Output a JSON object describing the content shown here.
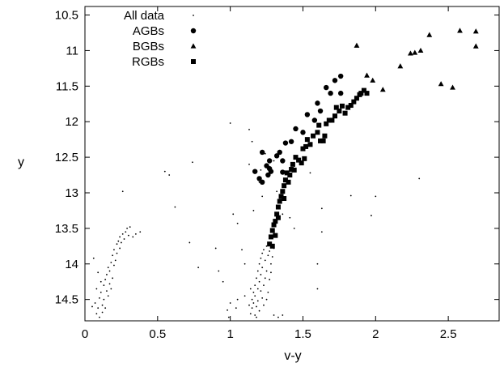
{
  "chart_data": {
    "type": "scatter",
    "xlabel": "v-y",
    "ylabel": "y",
    "xlim": [
      0,
      2.85
    ],
    "ylim": [
      10.38,
      14.8
    ],
    "y_inverted": true,
    "grid": false,
    "legend_position": "top-left",
    "x_ticks": [
      0,
      0.5,
      1,
      1.5,
      2,
      2.5
    ],
    "x_tick_labels": [
      "0",
      "0.5",
      "1",
      "1.5",
      "2",
      "2.5"
    ],
    "y_ticks": [
      10.5,
      11,
      11.5,
      12,
      12.5,
      13,
      13.5,
      14,
      14.5
    ],
    "y_tick_labels": [
      "10.5",
      "11",
      "11.5",
      "12",
      "12.5",
      "13",
      "13.5",
      "14",
      "14.5"
    ],
    "series": [
      {
        "name": "All data",
        "marker": "dot",
        "points": [
          [
            0.07,
            14.55
          ],
          [
            0.08,
            14.7
          ],
          [
            0.09,
            14.62
          ],
          [
            0.1,
            14.48
          ],
          [
            0.1,
            14.75
          ],
          [
            0.11,
            14.4
          ],
          [
            0.12,
            14.58
          ],
          [
            0.12,
            14.68
          ],
          [
            0.13,
            14.3
          ],
          [
            0.13,
            14.5
          ],
          [
            0.14,
            14.22
          ],
          [
            0.14,
            14.62
          ],
          [
            0.15,
            14.15
          ],
          [
            0.15,
            14.38
          ],
          [
            0.16,
            14.45
          ],
          [
            0.16,
            14.05
          ],
          [
            0.17,
            14.28
          ],
          [
            0.17,
            14.1
          ],
          [
            0.18,
            14.35
          ],
          [
            0.18,
            13.98
          ],
          [
            0.19,
            14.2
          ],
          [
            0.19,
            13.88
          ],
          [
            0.2,
            14.02
          ],
          [
            0.2,
            13.8
          ],
          [
            0.21,
            13.95
          ],
          [
            0.22,
            13.72
          ],
          [
            0.22,
            13.85
          ],
          [
            0.23,
            13.68
          ],
          [
            0.24,
            13.78
          ],
          [
            0.24,
            13.62
          ],
          [
            0.25,
            13.7
          ],
          [
            0.26,
            13.58
          ],
          [
            0.27,
            13.65
          ],
          [
            0.28,
            13.55
          ],
          [
            0.29,
            13.5
          ],
          [
            0.3,
            13.6
          ],
          [
            0.31,
            13.48
          ],
          [
            0.33,
            13.62
          ],
          [
            0.35,
            13.58
          ],
          [
            0.38,
            13.55
          ],
          [
            0.06,
            13.92
          ],
          [
            0.09,
            14.12
          ],
          [
            0.11,
            14.25
          ],
          [
            0.05,
            14.6
          ],
          [
            0.08,
            14.35
          ],
          [
            0.26,
            12.98
          ],
          [
            0.55,
            12.7
          ],
          [
            0.58,
            12.75
          ],
          [
            0.62,
            13.2
          ],
          [
            0.74,
            12.57
          ],
          [
            0.72,
            13.7
          ],
          [
            0.78,
            14.05
          ],
          [
            0.9,
            13.78
          ],
          [
            0.92,
            14.1
          ],
          [
            0.95,
            14.25
          ],
          [
            0.98,
            14.65
          ],
          [
            0.99,
            14.75
          ],
          [
            1.0,
            14.55
          ],
          [
            1.04,
            14.62
          ],
          [
            1.05,
            14.5
          ],
          [
            1.0,
            12.02
          ],
          [
            1.02,
            13.3
          ],
          [
            1.05,
            13.43
          ],
          [
            1.08,
            13.8
          ],
          [
            1.1,
            14.0
          ],
          [
            1.1,
            14.45
          ],
          [
            1.13,
            12.11
          ],
          [
            1.13,
            12.6
          ],
          [
            1.15,
            12.28
          ],
          [
            1.16,
            13.25
          ],
          [
            1.18,
            14.75
          ],
          [
            1.2,
            12.85
          ],
          [
            1.21,
            12.68
          ],
          [
            1.22,
            13.05
          ],
          [
            1.24,
            12.45
          ],
          [
            1.14,
            14.7
          ],
          [
            1.15,
            14.62
          ],
          [
            1.15,
            14.5
          ],
          [
            1.16,
            14.55
          ],
          [
            1.16,
            14.4
          ],
          [
            1.17,
            14.3
          ],
          [
            1.17,
            14.45
          ],
          [
            1.18,
            14.2
          ],
          [
            1.18,
            14.6
          ],
          [
            1.19,
            14.1
          ],
          [
            1.19,
            14.35
          ],
          [
            1.2,
            14.0
          ],
          [
            1.2,
            14.25
          ],
          [
            1.21,
            13.92
          ],
          [
            1.21,
            14.15
          ],
          [
            1.22,
            13.85
          ],
          [
            1.22,
            14.05
          ],
          [
            1.23,
            13.8
          ],
          [
            1.23,
            14.3
          ],
          [
            1.24,
            13.95
          ],
          [
            1.24,
            14.2
          ],
          [
            1.25,
            13.75
          ],
          [
            1.25,
            14.1
          ],
          [
            1.26,
            13.88
          ],
          [
            1.26,
            14.4
          ],
          [
            1.27,
            13.82
          ],
          [
            1.28,
            14.0
          ],
          [
            1.29,
            13.9
          ],
          [
            1.3,
            13.78
          ],
          [
            1.17,
            14.72
          ],
          [
            1.19,
            14.52
          ],
          [
            1.2,
            14.66
          ],
          [
            1.13,
            14.58
          ],
          [
            1.22,
            14.48
          ],
          [
            1.23,
            14.58
          ],
          [
            1.14,
            14.35
          ],
          [
            1.21,
            14.38
          ],
          [
            1.25,
            14.5
          ],
          [
            1.27,
            14.22
          ],
          [
            1.28,
            14.12
          ],
          [
            1.3,
            14.72
          ],
          [
            1.33,
            14.75
          ],
          [
            1.36,
            14.72
          ],
          [
            1.3,
            12.55
          ],
          [
            1.32,
            12.98
          ],
          [
            1.36,
            13.3
          ],
          [
            1.41,
            13.35
          ],
          [
            1.44,
            13.5
          ],
          [
            1.55,
            12.72
          ],
          [
            1.6,
            14.0
          ],
          [
            1.6,
            14.35
          ],
          [
            1.63,
            13.55
          ],
          [
            1.63,
            13.22
          ],
          [
            1.83,
            13.04
          ],
          [
            1.97,
            13.32
          ],
          [
            2.0,
            13.05
          ],
          [
            2.3,
            12.8
          ]
        ]
      },
      {
        "name": "AGBs",
        "marker": "circle",
        "points": [
          [
            1.17,
            12.7
          ],
          [
            1.2,
            12.8
          ],
          [
            1.22,
            12.43
          ],
          [
            1.22,
            12.85
          ],
          [
            1.25,
            12.62
          ],
          [
            1.26,
            12.75
          ],
          [
            1.27,
            12.66
          ],
          [
            1.28,
            12.7
          ],
          [
            1.27,
            12.55
          ],
          [
            1.32,
            12.48
          ],
          [
            1.34,
            12.43
          ],
          [
            1.36,
            12.55
          ],
          [
            1.36,
            12.71
          ],
          [
            1.38,
            12.3
          ],
          [
            1.42,
            12.28
          ],
          [
            1.45,
            12.1
          ],
          [
            1.5,
            12.15
          ],
          [
            1.53,
            11.9
          ],
          [
            1.58,
            11.98
          ],
          [
            1.6,
            11.74
          ],
          [
            1.62,
            11.85
          ],
          [
            1.66,
            11.52
          ],
          [
            1.69,
            11.6
          ],
          [
            1.72,
            11.42
          ],
          [
            1.76,
            11.36
          ],
          [
            1.76,
            11.6
          ]
        ]
      },
      {
        "name": "BGBs",
        "marker": "triangle",
        "points": [
          [
            1.87,
            10.93
          ],
          [
            1.94,
            11.35
          ],
          [
            1.98,
            11.42
          ],
          [
            2.05,
            11.55
          ],
          [
            2.17,
            11.22
          ],
          [
            2.24,
            11.04
          ],
          [
            2.27,
            11.03
          ],
          [
            2.31,
            11.0
          ],
          [
            2.37,
            10.78
          ],
          [
            2.45,
            11.47
          ],
          [
            2.53,
            11.52
          ],
          [
            2.58,
            10.72
          ],
          [
            2.69,
            10.73
          ],
          [
            2.69,
            10.94
          ]
        ]
      },
      {
        "name": "RGBs",
        "marker": "square",
        "points": [
          [
            1.27,
            13.72
          ],
          [
            1.28,
            13.62
          ],
          [
            1.29,
            13.75
          ],
          [
            1.29,
            13.53
          ],
          [
            1.3,
            13.45
          ],
          [
            1.31,
            13.4
          ],
          [
            1.31,
            13.6
          ],
          [
            1.32,
            13.3
          ],
          [
            1.33,
            13.2
          ],
          [
            1.33,
            13.35
          ],
          [
            1.34,
            13.12
          ],
          [
            1.35,
            13.05
          ],
          [
            1.36,
            12.98
          ],
          [
            1.37,
            12.9
          ],
          [
            1.37,
            13.08
          ],
          [
            1.38,
            12.82
          ],
          [
            1.39,
            12.72
          ],
          [
            1.4,
            12.85
          ],
          [
            1.41,
            12.75
          ],
          [
            1.42,
            12.67
          ],
          [
            1.43,
            12.6
          ],
          [
            1.44,
            12.68
          ],
          [
            1.45,
            12.5
          ],
          [
            1.47,
            12.54
          ],
          [
            1.49,
            12.58
          ],
          [
            1.5,
            12.38
          ],
          [
            1.51,
            12.52
          ],
          [
            1.52,
            12.35
          ],
          [
            1.53,
            12.25
          ],
          [
            1.55,
            12.32
          ],
          [
            1.57,
            12.2
          ],
          [
            1.6,
            12.15
          ],
          [
            1.61,
            12.05
          ],
          [
            1.62,
            12.27
          ],
          [
            1.64,
            12.27
          ],
          [
            1.65,
            12.2
          ],
          [
            1.66,
            12.03
          ],
          [
            1.68,
            11.98
          ],
          [
            1.7,
            11.98
          ],
          [
            1.72,
            11.92
          ],
          [
            1.73,
            11.8
          ],
          [
            1.75,
            11.85
          ],
          [
            1.77,
            11.78
          ],
          [
            1.79,
            11.88
          ],
          [
            1.81,
            11.8
          ],
          [
            1.83,
            11.77
          ],
          [
            1.85,
            11.72
          ],
          [
            1.87,
            11.67
          ],
          [
            1.89,
            11.62
          ],
          [
            1.9,
            11.6
          ],
          [
            1.92,
            11.56
          ],
          [
            1.94,
            11.6
          ]
        ]
      }
    ]
  }
}
